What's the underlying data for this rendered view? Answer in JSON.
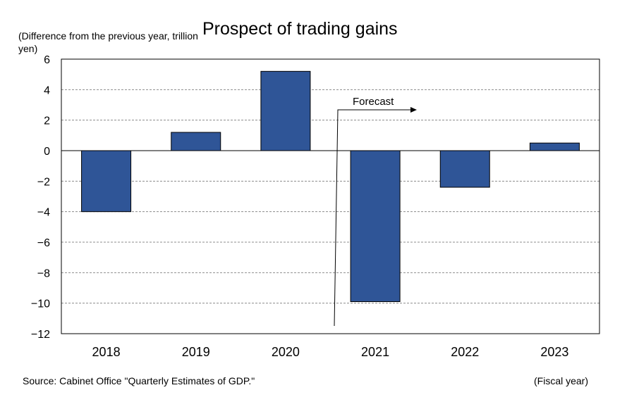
{
  "chart_data": {
    "type": "bar",
    "title": "Prospect of trading gains",
    "ylabel": "(Difference from the previous year, trillion yen)",
    "xlabel": "(Fiscal year)",
    "categories": [
      "2018",
      "2019",
      "2020",
      "2021",
      "2022",
      "2023"
    ],
    "values": [
      -4.0,
      1.2,
      5.2,
      -9.9,
      -2.4,
      0.5
    ],
    "ylim": [
      -12,
      6
    ],
    "yticks": [
      6,
      4,
      2,
      0,
      -2,
      -4,
      -6,
      -8,
      -10,
      -12
    ],
    "ytick_labels": [
      "6",
      "4",
      "2",
      "0",
      "−2",
      "−4",
      "−6",
      "−8",
      "−10",
      "−12"
    ],
    "grid": true,
    "bar_color": "#2F5597",
    "annotation": "Forecast"
  },
  "source": "Source: Cabinet Office \"Quarterly Estimates of GDP.\""
}
